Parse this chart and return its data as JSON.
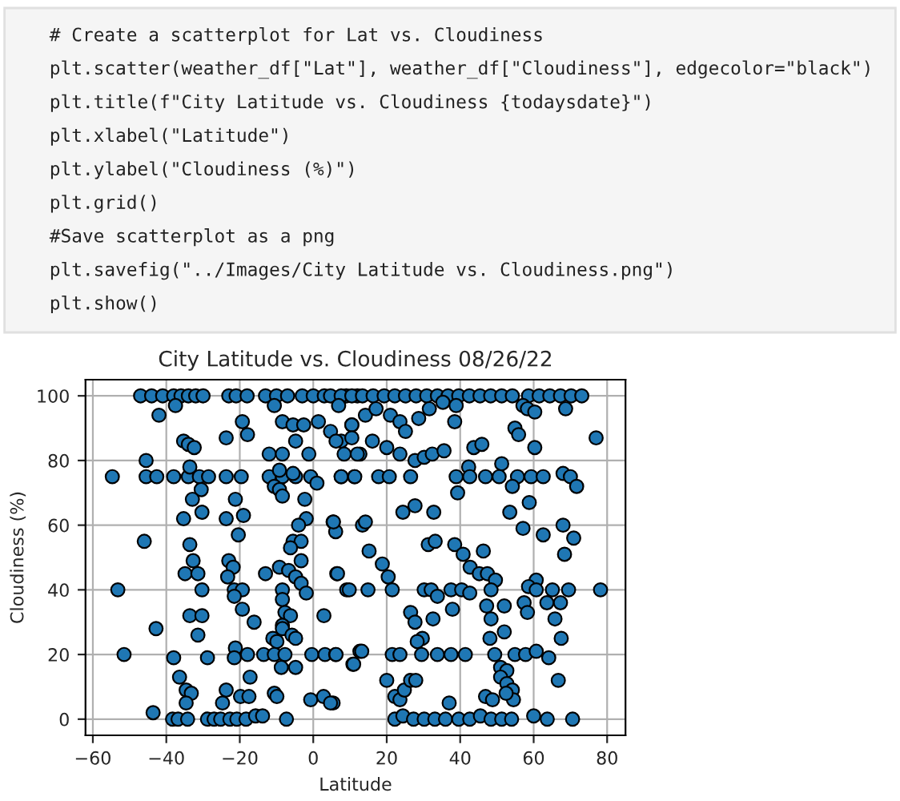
{
  "chart_data": {
    "type": "scatter",
    "title": "City Latitude vs. Cloudiness 08/26/22",
    "xlabel": "Latitude",
    "ylabel": "Cloudiness (%)",
    "annotations": [
      "# Create a scatterplot for Lat vs. Cloudiness",
      "plt.scatter(weather_df[\"Lat\"], weather_df[\"Cloudiness\"], edgecolor=\"black\")",
      "plt.title(f\"City Latitude vs. Cloudiness {todaysdate}\")",
      "plt.xlabel(\"Latitude\")",
      "plt.ylabel(\"Cloudiness (%)\")",
      "plt.grid()",
      "#Save scatterplot as a png",
      "plt.savefig(\"../Images/City Latitude vs. Cloudiness.png\")",
      "plt.show()"
    ],
    "xlim": [
      -62,
      85
    ],
    "ylim": [
      -5,
      105
    ],
    "xticks": [
      -60,
      -40,
      -20,
      0,
      20,
      40,
      60,
      80
    ],
    "yticks": [
      0,
      20,
      40,
      60,
      80,
      100
    ],
    "grid": true,
    "marker": "circle",
    "series": [
      {
        "color": "#1f77b4",
        "x": [
          -47,
          -44,
          -41,
          -38,
          -36,
          -34,
          -32,
          -30,
          -23,
          -21,
          -18,
          -13,
          -10,
          -7,
          -3,
          0,
          3,
          9,
          12,
          -42,
          -37.5,
          -35.3,
          -34,
          -32.4,
          -23.7,
          -19.3,
          -17.9,
          -12,
          -8.4,
          -8.4,
          -10.6,
          -5.5,
          -2.6,
          -4.8,
          -1.2,
          1.4,
          4.7,
          7.6,
          10.5,
          12.7,
          -45.5,
          -54.7,
          -45.5,
          -42.6,
          -38,
          -34,
          -31,
          -28.5,
          -23.7,
          -19.6,
          -12,
          -8.4,
          -4.8,
          -0.7,
          7.6,
          11.2,
          -33.6,
          -9.2,
          -5.5,
          -10.6,
          -9.2,
          1,
          -30.5,
          -32.9,
          -21.2,
          -8.4,
          -2.3,
          -35.3,
          -30.3,
          -23.7,
          -19,
          -1.9,
          5.4,
          6.1,
          -20.4,
          -4,
          13.4,
          -46,
          -33.6,
          -5.5,
          -3.3,
          -6.2,
          -32.7,
          -23,
          -21.8,
          -9.2,
          -6.7,
          -3.3,
          -34.9,
          -31.4,
          -23.3,
          -13,
          -4.8,
          -3.3,
          6.4,
          -53.2,
          -30.3,
          -21.5,
          -19.3,
          -8.4,
          -1.9,
          9.1,
          -21.5,
          -8.4,
          -19.3,
          -7.7,
          -6.2,
          2.9,
          -42.8,
          -33.6,
          -30.3,
          -16.1,
          -31.4,
          -8.4,
          -8.4,
          -5.8,
          -4.8,
          -11,
          -9.9,
          -21.2,
          -51.5,
          -38,
          -28.8,
          -21.5,
          -17.9,
          -13.5,
          -10.6,
          -7.7,
          -0.4,
          3.2,
          6.1,
          12.7,
          10.8,
          -8.7,
          -4.8,
          -36.4,
          -34.6,
          -33.2,
          -34.6,
          -23.7,
          -24.7,
          -19.8,
          -17.2,
          -17.5,
          -10.6,
          -9.9,
          -0.7,
          2.8,
          5.4,
          -43.6,
          -38.3,
          -36.8,
          -34.2,
          -28.8,
          -27,
          -25.2,
          -22.7,
          -20.8,
          -18.3,
          -15.7,
          -13.8,
          -7.3,
          4.7,
          7.6,
          10.5,
          13.4,
          16.3,
          19.3,
          22.2,
          25.1,
          28,
          30.9,
          33.8,
          36.7,
          39.6,
          42.5,
          45.4,
          48.3,
          51.3,
          54.2,
          58.6,
          61.5,
          64.4,
          67.3,
          70.2,
          73.1,
          6.9,
          10.5,
          14.2,
          17.1,
          21,
          23.6,
          25.1,
          28.7,
          31.6,
          35.3,
          38.5,
          38.9,
          43.7,
          45.9,
          54.9,
          55.9,
          57.1,
          58.3,
          60.3,
          68.7,
          77,
          6.2,
          8.4,
          12,
          10.5,
          16.1,
          20,
          23.6,
          27.7,
          30.2,
          32.4,
          35.6,
          60.3,
          42.3,
          51.3,
          7.6,
          11.3,
          17.8,
          20.7,
          26.5,
          38.9,
          42.6,
          46.9,
          50.6,
          55.6,
          59.3,
          62.6,
          68,
          70,
          71.7,
          54.2,
          39.3,
          58.8,
          24.4,
          27.7,
          32.8,
          53.5,
          5.5,
          14.2,
          57.1,
          62.6,
          68,
          70.9,
          68.4,
          31.3,
          33.2,
          38.5,
          40.8,
          46.3,
          15.2,
          18.8,
          42.7,
          45.2,
          47.4,
          49.6,
          20.4,
          6.6,
          60.7,
          9.8,
          14.9,
          21.5,
          30.2,
          32.1,
          33.8,
          37.5,
          40.4,
          42.6,
          48.4,
          58.6,
          60.7,
          65.1,
          69.5,
          78.2,
          26.5,
          27.7,
          32.6,
          37.9,
          47.2,
          52,
          48.4,
          52,
          57.4,
          58.3,
          63.6,
          67.3,
          65.8,
          67.5,
          29.7,
          28.3,
          48.1,
          6.2,
          13.2,
          11,
          21.5,
          23.6,
          29.5,
          33.8,
          37.5,
          41.4,
          54.9,
          57.8,
          60.7,
          64.1,
          49.4,
          51,
          52.7,
          20,
          22.2,
          23.6,
          24.8,
          26.5,
          27.9,
          37,
          46.9,
          48.8,
          51,
          52.7,
          54.2,
          54.5,
          52.5,
          66.7,
          4.7,
          22.2,
          24.4,
          27.3,
          30.2,
          33.1,
          36,
          39.6,
          42.6,
          45.5,
          48.4,
          51.3,
          54,
          60,
          63.7,
          70.6
        ],
        "values": [
          100,
          100,
          100,
          100,
          100,
          100,
          100,
          100,
          100,
          100,
          100,
          100,
          100,
          100,
          100,
          100,
          100,
          100,
          100,
          94,
          97,
          86,
          85,
          84,
          87,
          92,
          88,
          82,
          82,
          92,
          97,
          91,
          91,
          86,
          82,
          92,
          89,
          86,
          91,
          82,
          80,
          75,
          75,
          75,
          75,
          75,
          75,
          75,
          75,
          75,
          75,
          75,
          75,
          75,
          75,
          75,
          78,
          77,
          76,
          72,
          71,
          73,
          71,
          68,
          68,
          69,
          68,
          62,
          64,
          62,
          63,
          62,
          61,
          58,
          57,
          60,
          60,
          55,
          54,
          55,
          55,
          53,
          49,
          49,
          47,
          47,
          46,
          49,
          45,
          45,
          44,
          45,
          44,
          42,
          45,
          40,
          40,
          40,
          40,
          40,
          39,
          40,
          38,
          37,
          34,
          33,
          32,
          32,
          28,
          32,
          32,
          30,
          26,
          29,
          28,
          26,
          25,
          25,
          24,
          22,
          20,
          19,
          19,
          19,
          20,
          20,
          20,
          20,
          20,
          20,
          20,
          21,
          17,
          16,
          16,
          13,
          9,
          8,
          5,
          9,
          5,
          7,
          13,
          7,
          8,
          7,
          6,
          7,
          5,
          2,
          0,
          0,
          0,
          0,
          0,
          0,
          0,
          0,
          0,
          1,
          1,
          0,
          100,
          100,
          100,
          100,
          100,
          100,
          100,
          100,
          100,
          100,
          100,
          100,
          100,
          100,
          100,
          100,
          100,
          100,
          100,
          100,
          100,
          100,
          100,
          100,
          97,
          91,
          94,
          96,
          94,
          92,
          89,
          93,
          96,
          98,
          92,
          97,
          84,
          85,
          90,
          88,
          97,
          96,
          95,
          96,
          87,
          86,
          82,
          82,
          87,
          86,
          84,
          82,
          80,
          81,
          82,
          83,
          84,
          78,
          79,
          75,
          75,
          75,
          75,
          75,
          75,
          75,
          75,
          75,
          75,
          75,
          75,
          76,
          75,
          72,
          72,
          70,
          67,
          64,
          66,
          64,
          64,
          61,
          61,
          59,
          57,
          60,
          56,
          51,
          54,
          55,
          54,
          51,
          52,
          52,
          48,
          47,
          45,
          45,
          43,
          44,
          45,
          43,
          40,
          40,
          40,
          40,
          40,
          38,
          40,
          40,
          39,
          40,
          41,
          40,
          40,
          40,
          40,
          33,
          30,
          31,
          34,
          35,
          35,
          31,
          27,
          36,
          33,
          36,
          36,
          31,
          25,
          25,
          24,
          25,
          20,
          21,
          17,
          20,
          20,
          20,
          20,
          20,
          20,
          20,
          20,
          21,
          19,
          20,
          16,
          15,
          12,
          7,
          6,
          9,
          12,
          12,
          5,
          7,
          6,
          13,
          11,
          9,
          6,
          8,
          12,
          5,
          0,
          1,
          0,
          0,
          0,
          0,
          0,
          0,
          1,
          0,
          0,
          0,
          1,
          0,
          0
        ]
      }
    ]
  }
}
